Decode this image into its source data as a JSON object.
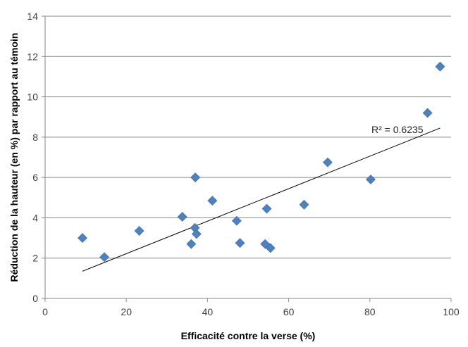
{
  "chart_data": {
    "type": "scatter",
    "title": "",
    "xlabel": "Efficacité contre la verse (%)",
    "ylabel": "Réduction de la hauteur (en %) par rapport au témoin",
    "xlim": [
      0,
      100
    ],
    "ylim": [
      0,
      14
    ],
    "x_ticks": [
      0,
      20,
      40,
      60,
      80,
      100
    ],
    "y_ticks": [
      0,
      2,
      4,
      6,
      8,
      10,
      12,
      14
    ],
    "grid": "horizontal",
    "marker": "diamond",
    "colors": {
      "marker": "#4f81bd",
      "trendline": "#000000",
      "grid": "#868686"
    },
    "points": [
      {
        "x": 9.2,
        "y": 3.0
      },
      {
        "x": 14.6,
        "y": 2.05
      },
      {
        "x": 23.2,
        "y": 3.35
      },
      {
        "x": 33.8,
        "y": 4.05
      },
      {
        "x": 36.0,
        "y": 2.7
      },
      {
        "x": 36.9,
        "y": 3.5
      },
      {
        "x": 37.0,
        "y": 6.0
      },
      {
        "x": 37.3,
        "y": 3.2
      },
      {
        "x": 41.2,
        "y": 4.85
      },
      {
        "x": 47.2,
        "y": 3.85
      },
      {
        "x": 48.0,
        "y": 2.75
      },
      {
        "x": 54.2,
        "y": 2.7
      },
      {
        "x": 54.6,
        "y": 4.45
      },
      {
        "x": 55.5,
        "y": 2.5
      },
      {
        "x": 63.8,
        "y": 4.65
      },
      {
        "x": 69.6,
        "y": 6.75
      },
      {
        "x": 80.2,
        "y": 5.9
      },
      {
        "x": 94.2,
        "y": 9.2
      },
      {
        "x": 97.3,
        "y": 11.5
      }
    ],
    "trendline": {
      "x": [
        9.2,
        97.3
      ],
      "y": [
        1.35,
        8.45
      ],
      "label": "R² = 0.6235"
    }
  }
}
